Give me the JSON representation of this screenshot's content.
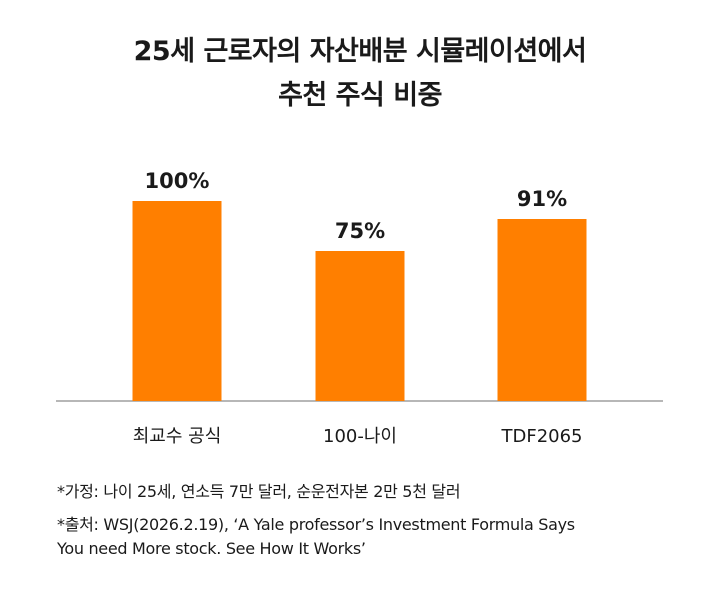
{
  "chart_data": {
    "type": "bar",
    "title_lines": [
      "25세 근로자의 자산배분 시뮬레이션에서",
      "추천 주식 비중"
    ],
    "categories": [
      "최교수 공식",
      "100-나이",
      "TDF2065"
    ],
    "values": [
      100,
      75,
      91
    ],
    "value_labels": [
      "100%",
      "75%",
      "91%"
    ],
    "unit": "%",
    "ylim": [
      0,
      100
    ],
    "grid": false,
    "legend": "none",
    "bar_color": "#FF7F00"
  },
  "footnotes": {
    "assumption": "*가정: 나이 25세, 연소득 7만 달러, 순운전자본 2만 5천 달러",
    "source_line1": "*출처: WSJ(2026.2.19), ‘A Yale professor’s Investment Formula Says",
    "source_line2": "You need More stock. See How It Works’"
  }
}
